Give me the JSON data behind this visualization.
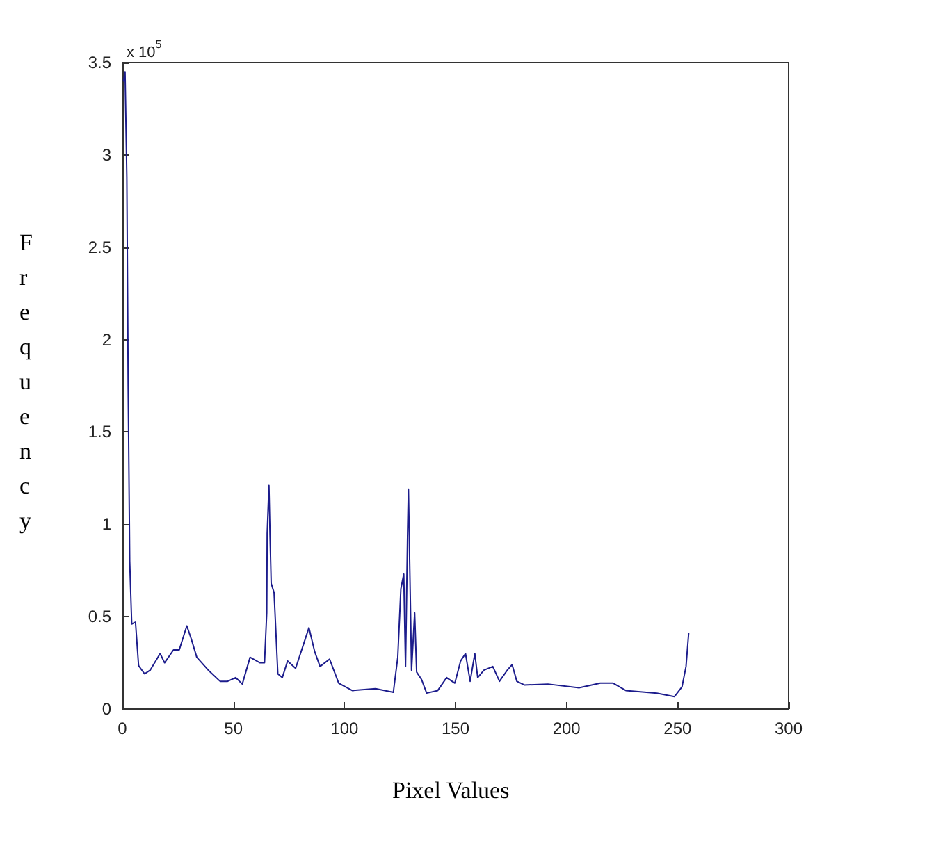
{
  "chart_data": {
    "type": "line",
    "xlabel": "Pixel Values",
    "ylabel": "Frequency",
    "annotations": [
      "x 10$^{5}$"
    ],
    "x": [
      0.5,
      1.2,
      2,
      2.6,
      3.3,
      4.2,
      5.9,
      7.3,
      10,
      12.5,
      17,
      19,
      23,
      25.6,
      29,
      31,
      33.5,
      38.7,
      44,
      47.4,
      51,
      54,
      57.5,
      62,
      64,
      65,
      65.2,
      66,
      66.5,
      67,
      68.3,
      70,
      72,
      74.4,
      78,
      81,
      84,
      86.6,
      89,
      93.3,
      97.4,
      103.5,
      114,
      122,
      124,
      125.4,
      126.7,
      127.5,
      128.4,
      128.8,
      129.5,
      130.2,
      131.6,
      132.5,
      134.7,
      137,
      142,
      146,
      149.7,
      152.3,
      154.5,
      156.6,
      158.7,
      160,
      162.8,
      166.8,
      169.8,
      173.3,
      175.5,
      177.6,
      181,
      191.6,
      205.6,
      215.2,
      221,
      226.7,
      240.7,
      248.6,
      252,
      253.8,
      255
    ],
    "series": [
      {
        "color": "#1c1c8c",
        "values": [
          3.4,
          3.45,
          2.88,
          1.75,
          0.8,
          0.46,
          0.47,
          0.235,
          0.19,
          0.21,
          0.3,
          0.25,
          0.32,
          0.32,
          0.45,
          0.38,
          0.28,
          0.21,
          0.15,
          0.15,
          0.17,
          0.135,
          0.28,
          0.25,
          0.25,
          0.52,
          0.95,
          1.21,
          0.93,
          0.68,
          0.63,
          0.19,
          0.17,
          0.26,
          0.22,
          0.33,
          0.44,
          0.31,
          0.23,
          0.27,
          0.14,
          0.1,
          0.11,
          0.09,
          0.28,
          0.65,
          0.73,
          0.23,
          0.94,
          1.19,
          0.7,
          0.21,
          0.52,
          0.2,
          0.16,
          0.086,
          0.1,
          0.17,
          0.14,
          0.26,
          0.3,
          0.15,
          0.3,
          0.17,
          0.21,
          0.23,
          0.15,
          0.21,
          0.24,
          0.15,
          0.13,
          0.135,
          0.115,
          0.14,
          0.14,
          0.1,
          0.086,
          0.067,
          0.12,
          0.23,
          0.41
        ]
      }
    ],
    "xlim": [
      0,
      300
    ],
    "xticks": [
      0,
      50,
      100,
      150,
      200,
      250,
      300
    ],
    "ylim": [
      0,
      3.5
    ],
    "yticks": [
      0,
      0.5,
      1,
      1.5,
      2,
      2.5,
      3,
      3.5
    ],
    "grid": false,
    "marker": "none",
    "line_style": "solid"
  }
}
